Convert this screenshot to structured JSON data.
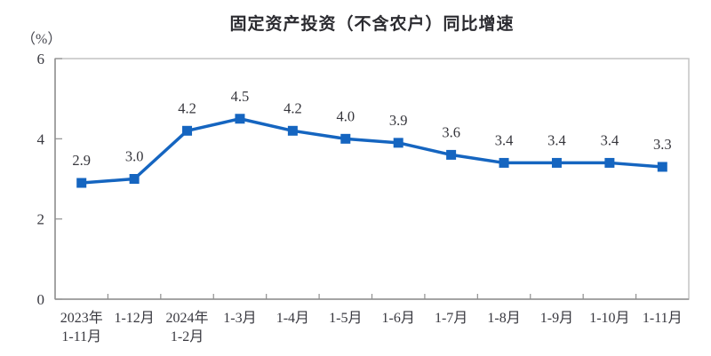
{
  "chart_data": {
    "type": "line",
    "title": "固定资产投资（不含农户）同比增速",
    "unit_label": "（%）",
    "categories": [
      [
        "2023年",
        "1-11月"
      ],
      [
        "1-12月"
      ],
      [
        "2024年",
        "1-2月"
      ],
      [
        "1-3月"
      ],
      [
        "1-4月"
      ],
      [
        "1-5月"
      ],
      [
        "1-6月"
      ],
      [
        "1-7月"
      ],
      [
        "1-8月"
      ],
      [
        "1-9月"
      ],
      [
        "1-10月"
      ],
      [
        "1-11月"
      ]
    ],
    "values": [
      2.9,
      3.0,
      4.2,
      4.5,
      4.2,
      4.0,
      3.9,
      3.6,
      3.4,
      3.4,
      3.4,
      3.3
    ],
    "value_labels": [
      "2.9",
      "3.0",
      "4.2",
      "4.5",
      "4.2",
      "4.0",
      "3.9",
      "3.6",
      "3.4",
      "3.4",
      "3.4",
      "3.3"
    ],
    "xlabel": "",
    "ylabel": "（%）",
    "ylim": [
      0,
      6
    ],
    "yticks": [
      0,
      2,
      4,
      6
    ],
    "grid": false,
    "legend": "none",
    "marker": "square",
    "colors": {
      "line": "#1565c0",
      "plot_border": "#c4c4c4",
      "axis": "#8f8f8f",
      "tick_text": "#38383f",
      "value_text": "#36363c",
      "title_text": "#2b2b30",
      "unit_text": "#46474f",
      "background": "#ffffff"
    }
  }
}
